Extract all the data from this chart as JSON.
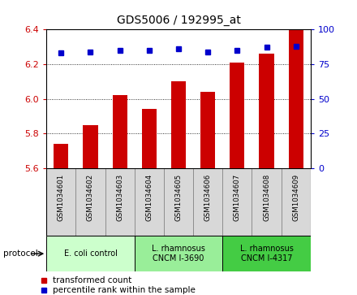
{
  "title": "GDS5006 / 192995_at",
  "samples": [
    "GSM1034601",
    "GSM1034602",
    "GSM1034603",
    "GSM1034604",
    "GSM1034605",
    "GSM1034606",
    "GSM1034607",
    "GSM1034608",
    "GSM1034609"
  ],
  "transformed_counts": [
    5.74,
    5.85,
    6.02,
    5.94,
    6.1,
    6.04,
    6.21,
    6.26,
    6.4
  ],
  "percentile_ranks": [
    83,
    84,
    85,
    85,
    86,
    84,
    85,
    87,
    88
  ],
  "ylim_left": [
    5.6,
    6.4
  ],
  "ylim_right": [
    0,
    100
  ],
  "yticks_left": [
    5.6,
    5.8,
    6.0,
    6.2,
    6.4
  ],
  "yticks_right": [
    0,
    25,
    50,
    75,
    100
  ],
  "bar_color": "#cc0000",
  "dot_color": "#0000cc",
  "bar_width": 0.5,
  "protocol_groups": [
    {
      "start": 0,
      "end": 2,
      "label": "E. coli control",
      "color": "#ccffcc"
    },
    {
      "start": 3,
      "end": 5,
      "label": "L. rhamnosus\nCNCM I-3690",
      "color": "#99ee99"
    },
    {
      "start": 6,
      "end": 8,
      "label": "L. rhamnosus\nCNCM I-4317",
      "color": "#44cc44"
    }
  ],
  "background_color": "#ffffff",
  "plot_bg_color": "#ffffff",
  "tick_color_left": "#cc0000",
  "tick_color_right": "#0000cc",
  "sample_cell_color": "#d8d8d8",
  "sample_cell_edge": "#888888",
  "xlim": [
    -0.5,
    8.5
  ]
}
